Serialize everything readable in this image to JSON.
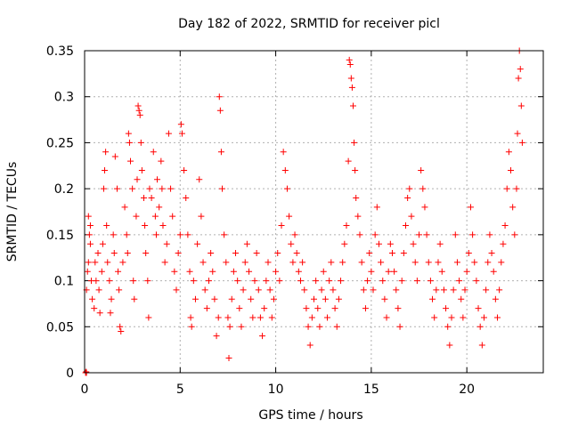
{
  "chart_data": {
    "type": "scatter",
    "title": "Day 182 of 2022, SRMTID for receiver picl",
    "xlabel": "GPS time / hours",
    "ylabel": "SRMTID / TECUs",
    "xlim": [
      0,
      24
    ],
    "ylim": [
      0,
      0.35
    ],
    "xticks": [
      0,
      5,
      10,
      15,
      20
    ],
    "xtick_labels": [
      "0",
      "5",
      "10",
      "15",
      "20"
    ],
    "yticks": [
      0,
      0.05,
      0.1,
      0.15,
      0.2,
      0.25,
      0.3,
      0.35
    ],
    "ytick_labels": [
      "0",
      "0.05",
      "0.1",
      "0.15",
      "0.2",
      "0.25",
      "0.3",
      "0.35"
    ],
    "grid": true,
    "legend": "none",
    "marker": "plus",
    "series": [
      {
        "color": "#ff0000",
        "points": [
          [
            0.05,
            0.0
          ],
          [
            0.1,
            0.0
          ],
          [
            0.08,
            0.001
          ],
          [
            0.1,
            0.09
          ],
          [
            0.2,
            0.12
          ],
          [
            0.25,
            0.15
          ],
          [
            0.3,
            0.16
          ],
          [
            0.35,
            0.1
          ],
          [
            0.4,
            0.08
          ],
          [
            0.2,
            0.17
          ],
          [
            0.3,
            0.14
          ],
          [
            0.15,
            0.11
          ],
          [
            0.5,
            0.07
          ],
          [
            0.55,
            0.12
          ],
          [
            0.6,
            0.1
          ],
          [
            0.7,
            0.13
          ],
          [
            0.75,
            0.09
          ],
          [
            0.8,
            0.065
          ],
          [
            0.9,
            0.11
          ],
          [
            0.95,
            0.14
          ],
          [
            1.0,
            0.2
          ],
          [
            1.05,
            0.22
          ],
          [
            1.1,
            0.24
          ],
          [
            1.15,
            0.16
          ],
          [
            1.2,
            0.12
          ],
          [
            1.3,
            0.1
          ],
          [
            1.35,
            0.065
          ],
          [
            1.4,
            0.08
          ],
          [
            1.5,
            0.15
          ],
          [
            1.55,
            0.13
          ],
          [
            1.6,
            0.235
          ],
          [
            1.7,
            0.2
          ],
          [
            1.75,
            0.11
          ],
          [
            1.8,
            0.09
          ],
          [
            1.85,
            0.05
          ],
          [
            1.9,
            0.045
          ],
          [
            2.0,
            0.12
          ],
          [
            2.1,
            0.18
          ],
          [
            2.2,
            0.15
          ],
          [
            2.25,
            0.13
          ],
          [
            2.3,
            0.26
          ],
          [
            2.35,
            0.25
          ],
          [
            2.4,
            0.23
          ],
          [
            2.5,
            0.2
          ],
          [
            2.55,
            0.1
          ],
          [
            2.6,
            0.08
          ],
          [
            2.7,
            0.17
          ],
          [
            2.75,
            0.21
          ],
          [
            2.8,
            0.29
          ],
          [
            2.85,
            0.285
          ],
          [
            2.9,
            0.28
          ],
          [
            2.95,
            0.25
          ],
          [
            3.0,
            0.22
          ],
          [
            3.1,
            0.19
          ],
          [
            3.15,
            0.16
          ],
          [
            3.2,
            0.13
          ],
          [
            3.3,
            0.1
          ],
          [
            3.35,
            0.06
          ],
          [
            3.4,
            0.2
          ],
          [
            3.5,
            0.19
          ],
          [
            3.6,
            0.24
          ],
          [
            3.7,
            0.17
          ],
          [
            3.75,
            0.15
          ],
          [
            3.8,
            0.21
          ],
          [
            3.9,
            0.18
          ],
          [
            4.0,
            0.23
          ],
          [
            4.05,
            0.2
          ],
          [
            4.1,
            0.16
          ],
          [
            4.2,
            0.12
          ],
          [
            4.3,
            0.14
          ],
          [
            4.4,
            0.26
          ],
          [
            4.5,
            0.2
          ],
          [
            4.6,
            0.17
          ],
          [
            4.7,
            0.11
          ],
          [
            4.8,
            0.09
          ],
          [
            4.9,
            0.13
          ],
          [
            5.0,
            0.15
          ],
          [
            5.05,
            0.27
          ],
          [
            5.1,
            0.26
          ],
          [
            5.2,
            0.22
          ],
          [
            5.3,
            0.19
          ],
          [
            5.4,
            0.15
          ],
          [
            5.5,
            0.11
          ],
          [
            5.55,
            0.06
          ],
          [
            5.6,
            0.05
          ],
          [
            5.7,
            0.1
          ],
          [
            5.8,
            0.08
          ],
          [
            5.9,
            0.14
          ],
          [
            6.0,
            0.21
          ],
          [
            6.1,
            0.17
          ],
          [
            6.2,
            0.12
          ],
          [
            6.3,
            0.09
          ],
          [
            6.4,
            0.07
          ],
          [
            6.5,
            0.1
          ],
          [
            6.6,
            0.13
          ],
          [
            6.7,
            0.11
          ],
          [
            6.8,
            0.08
          ],
          [
            6.9,
            0.04
          ],
          [
            7.0,
            0.06
          ],
          [
            7.05,
            0.3
          ],
          [
            7.1,
            0.285
          ],
          [
            7.15,
            0.24
          ],
          [
            7.2,
            0.2
          ],
          [
            7.3,
            0.15
          ],
          [
            7.4,
            0.12
          ],
          [
            7.5,
            0.06
          ],
          [
            7.55,
            0.016
          ],
          [
            7.6,
            0.05
          ],
          [
            7.7,
            0.08
          ],
          [
            7.8,
            0.11
          ],
          [
            7.9,
            0.13
          ],
          [
            8.0,
            0.1
          ],
          [
            8.1,
            0.07
          ],
          [
            8.2,
            0.05
          ],
          [
            8.3,
            0.09
          ],
          [
            8.4,
            0.12
          ],
          [
            8.5,
            0.14
          ],
          [
            8.6,
            0.11
          ],
          [
            8.7,
            0.08
          ],
          [
            8.8,
            0.06
          ],
          [
            8.9,
            0.1
          ],
          [
            9.0,
            0.13
          ],
          [
            9.1,
            0.09
          ],
          [
            9.2,
            0.06
          ],
          [
            9.3,
            0.04
          ],
          [
            9.4,
            0.07
          ],
          [
            9.5,
            0.1
          ],
          [
            9.6,
            0.12
          ],
          [
            9.7,
            0.09
          ],
          [
            9.8,
            0.06
          ],
          [
            9.9,
            0.08
          ],
          [
            10.0,
            0.11
          ],
          [
            10.1,
            0.13
          ],
          [
            10.2,
            0.1
          ],
          [
            10.3,
            0.16
          ],
          [
            10.4,
            0.24
          ],
          [
            10.5,
            0.22
          ],
          [
            10.6,
            0.2
          ],
          [
            10.7,
            0.17
          ],
          [
            10.8,
            0.14
          ],
          [
            10.9,
            0.12
          ],
          [
            11.0,
            0.15
          ],
          [
            11.1,
            0.13
          ],
          [
            11.2,
            0.11
          ],
          [
            11.3,
            0.1
          ],
          [
            11.4,
            0.12
          ],
          [
            11.5,
            0.09
          ],
          [
            11.6,
            0.07
          ],
          [
            11.7,
            0.05
          ],
          [
            11.8,
            0.03
          ],
          [
            11.9,
            0.06
          ],
          [
            12.0,
            0.08
          ],
          [
            12.1,
            0.1
          ],
          [
            12.2,
            0.07
          ],
          [
            12.3,
            0.05
          ],
          [
            12.4,
            0.09
          ],
          [
            12.5,
            0.11
          ],
          [
            12.6,
            0.08
          ],
          [
            12.7,
            0.06
          ],
          [
            12.8,
            0.1
          ],
          [
            12.9,
            0.12
          ],
          [
            13.0,
            0.09
          ],
          [
            13.1,
            0.07
          ],
          [
            13.2,
            0.05
          ],
          [
            13.3,
            0.08
          ],
          [
            13.4,
            0.1
          ],
          [
            13.5,
            0.12
          ],
          [
            13.6,
            0.14
          ],
          [
            13.7,
            0.16
          ],
          [
            13.8,
            0.23
          ],
          [
            13.85,
            0.34
          ],
          [
            13.9,
            0.335
          ],
          [
            13.95,
            0.32
          ],
          [
            14.0,
            0.31
          ],
          [
            14.05,
            0.29
          ],
          [
            14.1,
            0.25
          ],
          [
            14.15,
            0.22
          ],
          [
            14.2,
            0.19
          ],
          [
            14.3,
            0.17
          ],
          [
            14.4,
            0.15
          ],
          [
            14.5,
            0.12
          ],
          [
            14.6,
            0.09
          ],
          [
            14.7,
            0.07
          ],
          [
            14.8,
            0.1
          ],
          [
            14.9,
            0.13
          ],
          [
            15.0,
            0.11
          ],
          [
            15.1,
            0.09
          ],
          [
            15.2,
            0.15
          ],
          [
            15.3,
            0.18
          ],
          [
            15.4,
            0.14
          ],
          [
            15.5,
            0.12
          ],
          [
            15.6,
            0.1
          ],
          [
            15.7,
            0.08
          ],
          [
            15.8,
            0.06
          ],
          [
            15.9,
            0.11
          ],
          [
            16.0,
            0.14
          ],
          [
            16.1,
            0.13
          ],
          [
            16.2,
            0.11
          ],
          [
            16.3,
            0.09
          ],
          [
            16.4,
            0.07
          ],
          [
            16.5,
            0.05
          ],
          [
            16.6,
            0.1
          ],
          [
            16.7,
            0.13
          ],
          [
            16.8,
            0.16
          ],
          [
            16.9,
            0.19
          ],
          [
            17.0,
            0.2
          ],
          [
            17.1,
            0.17
          ],
          [
            17.2,
            0.14
          ],
          [
            17.3,
            0.12
          ],
          [
            17.4,
            0.1
          ],
          [
            17.5,
            0.15
          ],
          [
            17.6,
            0.22
          ],
          [
            17.7,
            0.2
          ],
          [
            17.8,
            0.18
          ],
          [
            17.9,
            0.15
          ],
          [
            18.0,
            0.12
          ],
          [
            18.1,
            0.1
          ],
          [
            18.2,
            0.08
          ],
          [
            18.3,
            0.06
          ],
          [
            18.4,
            0.09
          ],
          [
            18.5,
            0.12
          ],
          [
            18.6,
            0.14
          ],
          [
            18.7,
            0.11
          ],
          [
            18.8,
            0.09
          ],
          [
            18.9,
            0.07
          ],
          [
            19.0,
            0.05
          ],
          [
            19.1,
            0.03
          ],
          [
            19.2,
            0.06
          ],
          [
            19.3,
            0.09
          ],
          [
            19.4,
            0.15
          ],
          [
            19.5,
            0.12
          ],
          [
            19.6,
            0.1
          ],
          [
            19.7,
            0.08
          ],
          [
            19.8,
            0.06
          ],
          [
            19.9,
            0.09
          ],
          [
            20.0,
            0.11
          ],
          [
            20.1,
            0.13
          ],
          [
            20.2,
            0.18
          ],
          [
            20.3,
            0.15
          ],
          [
            20.4,
            0.12
          ],
          [
            20.5,
            0.1
          ],
          [
            20.6,
            0.07
          ],
          [
            20.7,
            0.05
          ],
          [
            20.8,
            0.03
          ],
          [
            20.9,
            0.06
          ],
          [
            21.0,
            0.09
          ],
          [
            21.1,
            0.12
          ],
          [
            21.2,
            0.15
          ],
          [
            21.3,
            0.13
          ],
          [
            21.4,
            0.11
          ],
          [
            21.5,
            0.08
          ],
          [
            21.6,
            0.06
          ],
          [
            21.7,
            0.09
          ],
          [
            21.8,
            0.12
          ],
          [
            21.9,
            0.14
          ],
          [
            22.0,
            0.16
          ],
          [
            22.1,
            0.2
          ],
          [
            22.2,
            0.24
          ],
          [
            22.3,
            0.22
          ],
          [
            22.4,
            0.18
          ],
          [
            22.5,
            0.15
          ],
          [
            22.6,
            0.2
          ],
          [
            22.65,
            0.26
          ],
          [
            22.7,
            0.32
          ],
          [
            22.75,
            0.35
          ],
          [
            22.8,
            0.33
          ],
          [
            22.85,
            0.29
          ],
          [
            22.9,
            0.25
          ]
        ]
      }
    ]
  }
}
